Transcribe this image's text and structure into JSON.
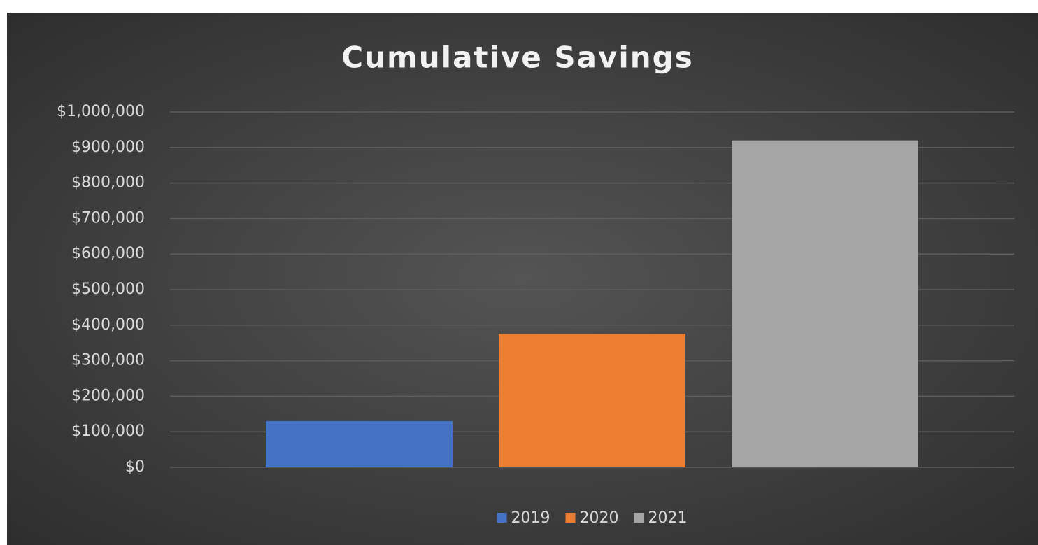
{
  "chart_data": {
    "type": "bar",
    "title": "Cumulative Savings",
    "categories": [
      null
    ],
    "series": [
      {
        "name": "2019",
        "color": "#4472c4",
        "values": [
          130000
        ]
      },
      {
        "name": "2020",
        "color": "#ed7d31",
        "values": [
          375000
        ]
      },
      {
        "name": "2021",
        "color": "#a5a5a5",
        "values": [
          920000
        ]
      }
    ],
    "ylim": [
      0,
      1000000
    ],
    "yticks": [
      {
        "value": 0,
        "label": "$0"
      },
      {
        "value": 100000,
        "label": "$100,000"
      },
      {
        "value": 200000,
        "label": "$200,000"
      },
      {
        "value": 300000,
        "label": "$300,000"
      },
      {
        "value": 400000,
        "label": "$400,000"
      },
      {
        "value": 500000,
        "label": "$500,000"
      },
      {
        "value": 600000,
        "label": "$600,000"
      },
      {
        "value": 700000,
        "label": "$700,000"
      },
      {
        "value": 800000,
        "label": "$800,000"
      },
      {
        "value": 900000,
        "label": "$900,000"
      },
      {
        "value": 1000000,
        "label": "$1,000,000"
      }
    ],
    "grid": true,
    "legend": "bottom"
  }
}
